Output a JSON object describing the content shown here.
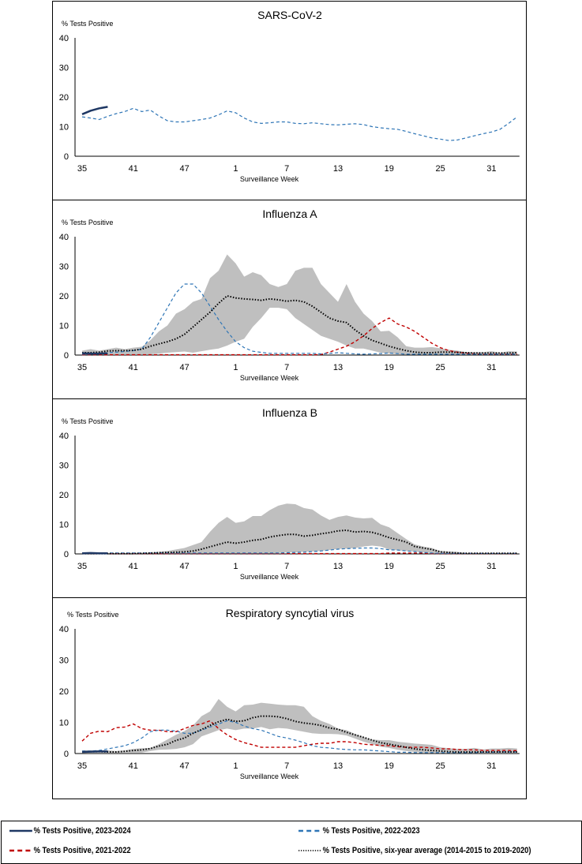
{
  "colors": {
    "s2324": "#1f3864",
    "s2223": "#2e75b6",
    "s2122": "#c00000",
    "avg": "#000000",
    "band": "#bfbfbf"
  },
  "legend": [
    {
      "key": "s2324",
      "label": "% Tests Positive, 2023-2024",
      "style": "solid"
    },
    {
      "key": "s2223",
      "label": "% Tests Positive, 2022-2023",
      "style": "dashed"
    },
    {
      "key": "s2122",
      "label": "% Tests Positive, 2021-2022",
      "style": "dashed"
    },
    {
      "key": "avg",
      "label": "% Tests Positive, six-year average (2014-2015 to 2019-2020)",
      "style": "dotted"
    }
  ],
  "chart_data": [
    {
      "type": "line",
      "title": "SARS-CoV-2",
      "xlabel": "Surveillance Week",
      "ylabel": "% Tests Positive",
      "ylim": [
        0,
        40
      ],
      "yticks": [
        "0",
        "10",
        "20",
        "30",
        "40"
      ],
      "xticks": [
        "35",
        "41",
        "47",
        "1",
        "7",
        "13",
        "19",
        "25",
        "31"
      ],
      "x": [
        35,
        36,
        37,
        38,
        39,
        40,
        41,
        42,
        43,
        44,
        45,
        46,
        47,
        48,
        49,
        50,
        51,
        52,
        1,
        2,
        3,
        4,
        5,
        6,
        7,
        8,
        9,
        10,
        11,
        12,
        13,
        14,
        15,
        16,
        17,
        18,
        19,
        20,
        21,
        22,
        23,
        24,
        25,
        26,
        27,
        28,
        29,
        30,
        31,
        32,
        33,
        34
      ],
      "series": {
        "s2324": [
          14.2,
          15.4,
          16.2,
          16.7
        ],
        "s2223": [
          13.3,
          12.9,
          12.4,
          13.5,
          14.4,
          15.1,
          16.2,
          15.1,
          15.6,
          13.6,
          12,
          11.6,
          11.6,
          12,
          12.4,
          12.9,
          14,
          15.3,
          14.7,
          12.9,
          11.6,
          11.1,
          11.3,
          11.6,
          11.6,
          11.1,
          11,
          11.3,
          11,
          10.7,
          10.6,
          10.8,
          11,
          10.7,
          10,
          9.6,
          9.3,
          9.1,
          8.4,
          7.6,
          6.9,
          6.2,
          5.8,
          5.3,
          5.5,
          6.2,
          6.9,
          7.6,
          8.2,
          9.1,
          11.1,
          13.3
        ]
      }
    },
    {
      "type": "line",
      "title": "Influenza A",
      "xlabel": "Surveillance Week",
      "ylabel": "% Tests Positive",
      "ylim": [
        0,
        40
      ],
      "yticks": [
        "0",
        "10",
        "20",
        "30",
        "40"
      ],
      "xticks": [
        "35",
        "41",
        "47",
        "1",
        "7",
        "13",
        "19",
        "25",
        "31"
      ],
      "x": [
        35,
        36,
        37,
        38,
        39,
        40,
        41,
        42,
        43,
        44,
        45,
        46,
        47,
        48,
        49,
        50,
        51,
        52,
        1,
        2,
        3,
        4,
        5,
        6,
        7,
        8,
        9,
        10,
        11,
        12,
        13,
        14,
        15,
        16,
        17,
        18,
        19,
        20,
        21,
        22,
        23,
        24,
        25,
        26,
        27,
        28,
        29,
        30,
        31,
        32,
        33,
        34
      ],
      "band_upper": [
        1.5,
        2,
        1.5,
        2,
        2.5,
        2,
        2.5,
        2.8,
        5,
        8,
        10,
        14,
        15.5,
        18,
        19,
        26,
        28.5,
        34,
        31,
        26.5,
        28,
        27,
        24,
        23,
        24,
        28.5,
        29.5,
        29.5,
        24,
        21,
        18,
        24,
        18,
        14,
        11.5,
        8,
        8.2,
        6,
        3,
        2.5,
        2.5,
        2.7,
        2.3,
        1.8,
        1.5,
        1,
        1,
        1,
        1.3,
        0.8,
        1.3,
        1.2
      ],
      "band_lower": [
        0.3,
        0.3,
        0.3,
        0.3,
        0.3,
        0.3,
        0.3,
        0.3,
        0.3,
        0.5,
        0.8,
        1,
        1.2,
        0.8,
        1.3,
        1.8,
        2.2,
        3.2,
        4.5,
        5.5,
        9.5,
        12.5,
        16,
        16,
        15.5,
        12.5,
        10.5,
        8.5,
        6.5,
        5.5,
        4.5,
        3.2,
        2.2,
        2.2,
        1.5,
        0.8,
        0.5,
        0.3,
        0.2,
        0.2,
        0.2,
        0.2,
        0.2,
        0.2,
        0.2,
        0.2,
        0.2,
        0.2,
        0.2,
        0.2,
        0.2,
        0.2
      ],
      "series": {
        "s2324": [
          0.6,
          0.5,
          0.5,
          0.6
        ],
        "s2223": [
          0.3,
          0.3,
          0.5,
          0.8,
          1,
          1.2,
          1.5,
          2,
          6,
          11,
          16,
          21,
          24,
          24,
          21,
          16.5,
          12,
          8,
          4.5,
          2.5,
          1.3,
          0.9,
          0.6,
          0.6,
          0.6,
          0.6,
          0.6,
          0.6,
          0.4,
          0.6,
          0.8,
          0.6,
          0.4,
          0.3,
          0.4,
          0.5,
          0.7,
          0.5,
          0.3,
          0.3,
          0.3,
          0.3,
          0.3,
          0.3,
          0.3,
          0.3,
          0.3,
          0.3,
          0.3,
          0.3,
          0.3,
          0.3
        ],
        "s2122": [
          0.1,
          0.1,
          0.1,
          0.1,
          0.1,
          0.1,
          0.1,
          0.1,
          0.1,
          0.1,
          0.1,
          0.1,
          0.1,
          0.1,
          0.1,
          0.1,
          0.1,
          0.1,
          0.1,
          0.1,
          0.1,
          0.1,
          0.1,
          0.1,
          0.1,
          0.1,
          0.1,
          0.1,
          0.2,
          1,
          2,
          3,
          4.5,
          6.5,
          9,
          11,
          12.5,
          10.5,
          9.5,
          8,
          6,
          4,
          2.5,
          1.5,
          1,
          0.6,
          0.4,
          0.3,
          0.3,
          0.3,
          0.3,
          0.3
        ],
        "avg": [
          0.8,
          0.8,
          1,
          1.4,
          1.5,
          1.5,
          1.6,
          2,
          3,
          3.8,
          4.5,
          5.5,
          7,
          9.5,
          12,
          14.5,
          17.5,
          20,
          19.3,
          19,
          18.8,
          18.5,
          19,
          18.7,
          18.2,
          18.5,
          18,
          16.5,
          14.5,
          12.5,
          11.5,
          11,
          8.5,
          6.5,
          5,
          4,
          3,
          2.2,
          1.5,
          1,
          0.8,
          0.8,
          1,
          1,
          0.9,
          0.8,
          0.7,
          0.7,
          0.7,
          0.7,
          0.7,
          0.8
        ]
      }
    },
    {
      "type": "line",
      "title": "Influenza B",
      "xlabel": "Surveillance Week",
      "ylabel": "% Tests Positive",
      "ylim": [
        0,
        40
      ],
      "yticks": [
        "0",
        "10",
        "20",
        "30",
        "40"
      ],
      "xticks": [
        "35",
        "41",
        "47",
        "1",
        "7",
        "13",
        "19",
        "25",
        "31"
      ],
      "x": [
        35,
        36,
        37,
        38,
        39,
        40,
        41,
        42,
        43,
        44,
        45,
        46,
        47,
        48,
        49,
        50,
        51,
        52,
        1,
        2,
        3,
        4,
        5,
        6,
        7,
        8,
        9,
        10,
        11,
        12,
        13,
        14,
        15,
        16,
        17,
        18,
        19,
        20,
        21,
        22,
        23,
        24,
        25,
        26,
        27,
        28,
        29,
        30,
        31,
        32,
        33,
        34
      ],
      "band_upper": [
        0.3,
        0.4,
        0.3,
        0.3,
        0.3,
        0.3,
        0.4,
        0.4,
        0.5,
        0.7,
        1,
        1.5,
        2,
        3,
        4,
        7.5,
        10.5,
        12.5,
        10.5,
        11,
        12.8,
        12.8,
        14.8,
        16.3,
        17,
        16.8,
        15.5,
        15,
        13,
        11.5,
        12.5,
        13,
        12.3,
        12,
        12.2,
        10,
        9,
        7,
        5,
        3.2,
        2.5,
        2,
        1,
        0.8,
        0.7,
        0.3,
        0.3,
        0.3,
        0.3,
        0.3,
        0.3,
        0.3
      ],
      "band_lower": [
        0,
        0,
        0,
        0,
        0,
        0,
        0,
        0,
        0,
        0,
        0,
        0,
        0,
        0,
        0,
        0,
        0,
        0,
        0,
        0,
        0,
        0,
        0,
        0.3,
        0.5,
        0.5,
        0.7,
        0.8,
        1,
        1.3,
        1.7,
        1.8,
        2,
        2.5,
        2.8,
        2.5,
        1.5,
        1.2,
        1,
        0.8,
        0.5,
        0.3,
        0,
        0,
        0,
        0,
        0,
        0,
        0,
        0,
        0,
        0
      ],
      "series": {
        "s2324": [
          0.2,
          0.3,
          0.2,
          0.2
        ],
        "s2223": [
          0.3,
          0.3,
          0.3,
          0.3,
          0.3,
          0.3,
          0.3,
          0.3,
          0.3,
          0.3,
          0.3,
          0.3,
          0.3,
          0.3,
          0.3,
          0.3,
          0.3,
          0.3,
          0.3,
          0.3,
          0.3,
          0.3,
          0.3,
          0.3,
          0.4,
          0.5,
          0.6,
          0.8,
          1,
          1.3,
          1.6,
          1.8,
          1.9,
          2,
          2,
          1.8,
          1.4,
          1.3,
          1,
          0.8,
          0.5,
          0.3,
          0.2,
          0.2,
          0.2,
          0.2,
          0.2,
          0.2,
          0.2,
          0.2,
          0.2,
          0.2
        ],
        "s2122": [
          0.1,
          0.1,
          0.1,
          0.1,
          0.1,
          0.1,
          0.1,
          0.1,
          0.1,
          0.1,
          0.1,
          0.1,
          0.1,
          0.1,
          0.1,
          0.1,
          0.1,
          0.1,
          0.1,
          0.1,
          0.1,
          0.1,
          0.1,
          0.1,
          0.1,
          0.1,
          0.1,
          0.1,
          0.1,
          0.1,
          0.1,
          0.1,
          0.1,
          0.1,
          0.1,
          0.1,
          0.3,
          0.3,
          0.3,
          0.3,
          0.3,
          0.1,
          0.1,
          0.1,
          0.1,
          0.1,
          0.1,
          0.1,
          0.1,
          0.1,
          0.1,
          0.1
        ],
        "avg": [
          0.1,
          0.1,
          0.1,
          0.1,
          0.1,
          0.1,
          0.1,
          0.2,
          0.3,
          0.4,
          0.5,
          0.6,
          0.7,
          1,
          1.6,
          2.4,
          3.2,
          4,
          3.6,
          4,
          4.6,
          4.9,
          5.7,
          6.2,
          6.6,
          6.6,
          6,
          6.3,
          6.8,
          7.2,
          7.8,
          8,
          7.4,
          7.6,
          7.3,
          6.5,
          5.5,
          4.8,
          4,
          2.5,
          2,
          1.5,
          0.7,
          0.5,
          0.3,
          0.2,
          0.2,
          0.2,
          0.2,
          0.2,
          0.2,
          0.2
        ]
      }
    },
    {
      "type": "line",
      "title": "Respiratory syncytial virus",
      "xlabel": "Surveillance Week",
      "ylabel": "% Tests Positive",
      "ylim": [
        0,
        40
      ],
      "yticks": [
        "0",
        "10",
        "20",
        "30",
        "40"
      ],
      "xticks": [
        "35",
        "41",
        "47",
        "1",
        "7",
        "13",
        "19",
        "25",
        "31"
      ],
      "x": [
        35,
        36,
        37,
        38,
        39,
        40,
        41,
        42,
        43,
        44,
        45,
        46,
        47,
        48,
        49,
        50,
        51,
        52,
        1,
        2,
        3,
        4,
        5,
        6,
        7,
        8,
        9,
        10,
        11,
        12,
        13,
        14,
        15,
        16,
        17,
        18,
        19,
        20,
        21,
        22,
        23,
        24,
        25,
        26,
        27,
        28,
        29,
        30,
        31,
        32,
        33,
        34
      ],
      "band_upper": [
        1,
        1,
        1,
        1,
        0.8,
        1,
        1.5,
        1.7,
        1.8,
        3,
        4.5,
        6,
        7.2,
        9,
        12,
        13.5,
        17.5,
        15,
        13.5,
        15.5,
        15.7,
        16.3,
        16,
        15.7,
        15.5,
        15.5,
        15,
        12,
        10.5,
        9.5,
        8,
        7.5,
        6.3,
        5.3,
        4.5,
        4.3,
        4.3,
        3.8,
        3.5,
        3.2,
        3,
        2.8,
        2,
        1.7,
        1.5,
        1.5,
        1.8,
        1.3,
        1.6,
        1.6,
        1.8,
        1.6
      ],
      "band_lower": [
        0.3,
        0.3,
        0.3,
        0.3,
        0.3,
        0.3,
        0.3,
        0.3,
        0.8,
        1.2,
        1.3,
        1.5,
        2,
        3,
        5.5,
        6.5,
        7.5,
        8,
        7.5,
        8,
        8,
        8.5,
        7.8,
        8.2,
        8,
        7.5,
        7,
        6.5,
        6.3,
        6.3,
        6.2,
        5.8,
        4.8,
        3.8,
        3,
        2.2,
        1.8,
        1.2,
        0.8,
        0.5,
        0.3,
        0.3,
        0.3,
        0.3,
        0.3,
        0.3,
        0.3,
        0.3,
        0.3,
        0.3,
        0.3,
        0.3
      ],
      "series": {
        "s2324": [
          0.5,
          0.6,
          0.7,
          0.7
        ],
        "s2223": [
          0.8,
          0.8,
          1,
          1.5,
          2,
          2.5,
          3.5,
          5,
          7,
          7.5,
          7.5,
          7.2,
          6.5,
          6.5,
          7.5,
          8.5,
          9.5,
          10.5,
          10,
          8.8,
          8,
          7.5,
          6.5,
          5.5,
          5,
          4.3,
          3.5,
          2.5,
          2,
          1.8,
          1.5,
          1.3,
          1.2,
          1.2,
          1,
          0.8,
          0.6,
          0.4,
          0.4,
          0.3,
          0.3,
          0.3,
          0.3,
          0.3,
          0.3,
          0.3,
          0.3,
          0.4,
          0.4,
          0.5,
          0.5,
          0.5
        ],
        "s2122": [
          4,
          6.5,
          7.2,
          7,
          8.3,
          8.5,
          9.5,
          8,
          7.5,
          7.5,
          7,
          7,
          8,
          9,
          9.5,
          10.5,
          8,
          6,
          4.5,
          3.5,
          2.8,
          2,
          2,
          2,
          2,
          2,
          2.5,
          3,
          3.3,
          3.3,
          3.8,
          3.8,
          3.5,
          3,
          2.8,
          2.6,
          2.5,
          2.2,
          2,
          2,
          2,
          1.8,
          1.5,
          1.5,
          1.3,
          1.2,
          1.2,
          1,
          1,
          1,
          1,
          0.9
        ],
        "avg": [
          0.5,
          0.6,
          0.6,
          0.5,
          0.5,
          0.7,
          1,
          1.2,
          1.6,
          2.4,
          3,
          4.2,
          5,
          6.5,
          7.7,
          9,
          10.2,
          11,
          10.3,
          10.5,
          11.5,
          12,
          12,
          11.8,
          11.2,
          10.3,
          9.8,
          9.5,
          9,
          8.2,
          7.8,
          6.8,
          6,
          5.2,
          4.3,
          3.5,
          3,
          2.5,
          2,
          1.5,
          1.2,
          1,
          0.8,
          0.6,
          0.5,
          0.5,
          0.5,
          0.5,
          0.5,
          0.5,
          0.5,
          0.5
        ]
      }
    }
  ]
}
